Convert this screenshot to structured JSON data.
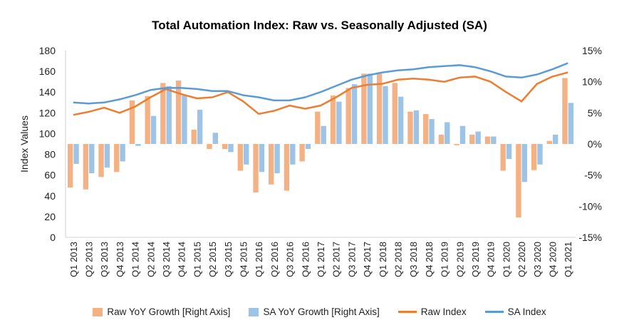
{
  "chart_data": {
    "type": "bar+line",
    "title": "Total Automation Index: Raw vs. Seasonally Adjusted (SA)",
    "ylabel": "Index Values",
    "ylim": [
      0,
      180
    ],
    "yticks": [
      0,
      20,
      40,
      60,
      80,
      100,
      120,
      140,
      160,
      180
    ],
    "y2lim": [
      -15,
      15
    ],
    "y2ticks": [
      "-15%",
      "-10%",
      "-5%",
      "0%",
      "5%",
      "10%",
      "15%"
    ],
    "y2values": [
      -15,
      -10,
      -5,
      0,
      5,
      10,
      15
    ],
    "categories": [
      "Q1 2013",
      "Q2 2013",
      "Q3 2013",
      "Q4 2013",
      "Q1 2014",
      "Q2 2014",
      "Q3 2014",
      "Q4 2014",
      "Q1 2015",
      "Q2 2015",
      "Q3 2015",
      "Q4 2015",
      "Q1 2016",
      "Q2 2016",
      "Q3 2016",
      "Q4 2016",
      "Q1 2017",
      "Q2 2017",
      "Q3 2017",
      "Q4 2017",
      "Q1 2018",
      "Q2 2018",
      "Q3 2018",
      "Q4 2018",
      "Q1 2019",
      "Q2 2019",
      "Q3 2019",
      "Q4 2019",
      "Q1 2020",
      "Q2 2020",
      "Q3 2020",
      "Q4 2020",
      "Q1 2021"
    ],
    "series": [
      {
        "name": "Raw YoY Growth [Right Axis]",
        "type": "bar",
        "axis": "right",
        "color": "#f4b183",
        "values": [
          -7,
          -7.3,
          -5.3,
          -4.5,
          7,
          7.7,
          9.8,
          10.2,
          2.3,
          -0.8,
          -0.8,
          -4.3,
          -7.8,
          -6.5,
          -7.5,
          -2.8,
          5.2,
          7.8,
          9,
          11.3,
          11.3,
          9.8,
          5.2,
          4.8,
          1.5,
          -0.2,
          1.5,
          1.2,
          -4.3,
          -11.8,
          -4.2,
          0.5,
          10.6
        ]
      },
      {
        "name": "SA YoY Growth [Right Axis]",
        "type": "bar",
        "axis": "right",
        "color": "#9dc3e6",
        "values": [
          -3.2,
          -4.7,
          -3.8,
          -2.8,
          -0.3,
          4.5,
          9.3,
          7.8,
          5.5,
          1.8,
          -1.3,
          -3.3,
          -4.5,
          -4.7,
          -3.3,
          -0.8,
          2.9,
          6.8,
          9.6,
          11.3,
          9.3,
          7.6,
          5.4,
          4,
          3.5,
          2.9,
          2,
          1.2,
          -2.4,
          -6.1,
          -3.3,
          1.5,
          6.6
        ]
      },
      {
        "name": "Raw Index",
        "type": "line",
        "axis": "left",
        "color": "#ed7d31",
        "values": [
          118,
          121,
          125,
          120,
          126,
          135,
          143,
          138,
          134,
          135,
          140,
          131,
          119,
          122,
          127,
          124,
          127,
          135,
          144,
          147,
          148,
          152,
          153,
          152,
          150,
          154,
          155,
          150,
          140,
          131,
          148,
          155,
          159
        ]
      },
      {
        "name": "SA Index",
        "type": "line",
        "axis": "left",
        "color": "#5b9bd5",
        "values": [
          130,
          129,
          130,
          133,
          137,
          142,
          144,
          144,
          143,
          141,
          141,
          137,
          135,
          132,
          132,
          135,
          140,
          146,
          152,
          156,
          159,
          161,
          162,
          164,
          165,
          166,
          164,
          160,
          155,
          154,
          157,
          162,
          168
        ]
      }
    ],
    "legend": [
      "Raw YoY Growth [Right Axis]",
      "SA YoY Growth [Right Axis]",
      "Raw Index",
      "SA Index"
    ],
    "legend_position": "bottom"
  }
}
